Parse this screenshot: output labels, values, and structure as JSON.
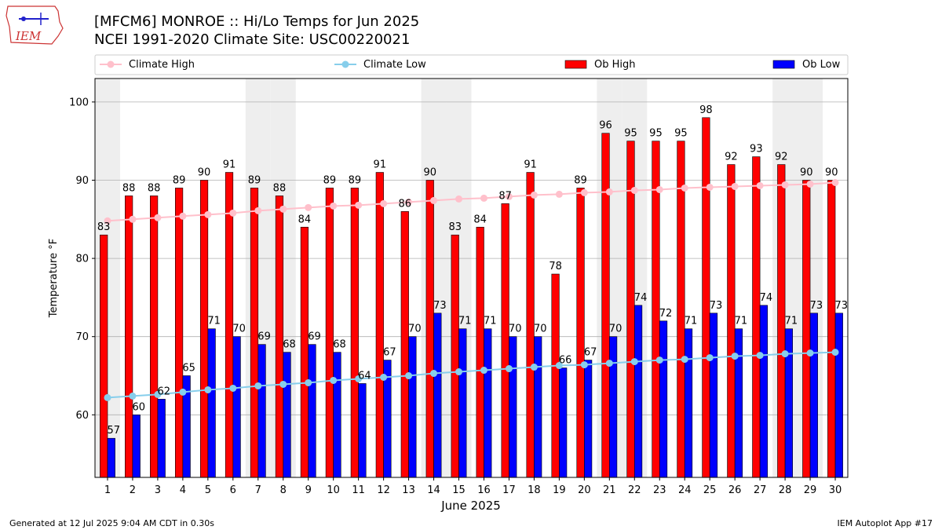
{
  "header": {
    "logo_text": "IEM",
    "title_line1": "[MFCM6] MONROE :: Hi/Lo Temps for Jun 2025",
    "title_line2": "NCEI 1991-2020 Climate Site: USC00220021"
  },
  "footer": {
    "generated": "Generated at 12 Jul 2025 9:04 AM CDT in 0.30s",
    "app": "IEM Autoplot App #17"
  },
  "colors": {
    "climate_high": "#ffc0cb",
    "climate_low": "#87ceeb",
    "ob_high": "#ff0000",
    "ob_low": "#0000ff",
    "weekend_shade": "#eeeeee",
    "grid": "#b0b0b0"
  },
  "chart_data": {
    "type": "bar",
    "xlabel": "June 2025",
    "ylabel": "Temperature °F",
    "ylim": [
      52,
      103
    ],
    "yticks": [
      60,
      70,
      80,
      90,
      100
    ],
    "grid": "horizontal",
    "legend_position": "top",
    "categories": [
      "1",
      "2",
      "3",
      "4",
      "5",
      "6",
      "7",
      "8",
      "9",
      "10",
      "11",
      "12",
      "13",
      "14",
      "15",
      "16",
      "17",
      "18",
      "19",
      "20",
      "21",
      "22",
      "23",
      "24",
      "25",
      "26",
      "27",
      "28",
      "29",
      "30"
    ],
    "shaded_days": [
      "1",
      "7",
      "8",
      "14",
      "15",
      "21",
      "22",
      "28",
      "29"
    ],
    "series": [
      {
        "name": "Climate High",
        "kind": "line",
        "values": [
          84.8,
          85.0,
          85.2,
          85.4,
          85.6,
          85.8,
          86.1,
          86.3,
          86.5,
          86.7,
          86.8,
          87.0,
          87.2,
          87.4,
          87.6,
          87.7,
          87.9,
          88.1,
          88.2,
          88.4,
          88.5,
          88.7,
          88.8,
          89.0,
          89.1,
          89.2,
          89.3,
          89.4,
          89.5,
          89.7
        ]
      },
      {
        "name": "Climate Low",
        "kind": "line",
        "values": [
          62.2,
          62.4,
          62.6,
          62.9,
          63.2,
          63.4,
          63.7,
          63.9,
          64.1,
          64.4,
          64.6,
          64.8,
          65.0,
          65.3,
          65.5,
          65.7,
          65.9,
          66.1,
          66.3,
          66.4,
          66.6,
          66.8,
          67.0,
          67.1,
          67.3,
          67.5,
          67.6,
          67.8,
          67.9,
          68.0
        ]
      },
      {
        "name": "Ob High",
        "kind": "bar",
        "values": [
          83,
          88,
          88,
          89,
          90,
          91,
          89,
          88,
          84,
          89,
          89,
          91,
          86,
          90,
          83,
          84,
          87,
          91,
          78,
          89,
          96,
          95,
          95,
          95,
          98,
          92,
          93,
          92,
          90,
          90
        ]
      },
      {
        "name": "Ob Low",
        "kind": "bar",
        "values": [
          57,
          60,
          62,
          65,
          71,
          70,
          69,
          68,
          69,
          68,
          64,
          67,
          70,
          73,
          71,
          71,
          70,
          70,
          66,
          67,
          70,
          74,
          72,
          71,
          73,
          71,
          74,
          71,
          73,
          73
        ]
      }
    ]
  }
}
